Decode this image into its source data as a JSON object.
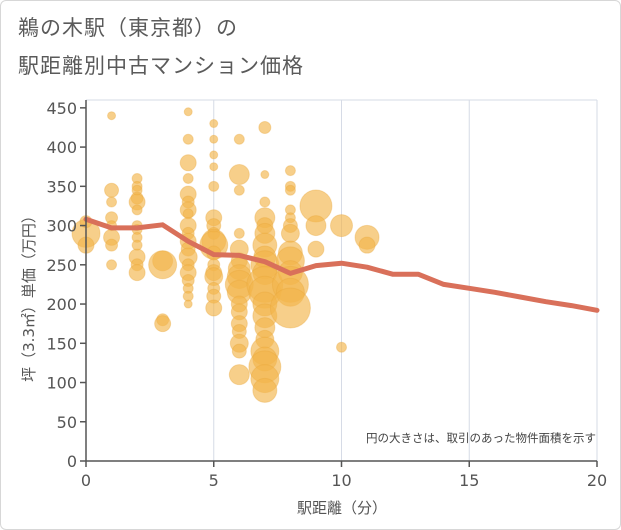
{
  "title_line1": "鵜の木駅（東京都）の",
  "title_line2": "駅距離別中古マンション価格",
  "chart_data": {
    "type": "scatter",
    "title": "鵜の木駅（東京都）の 駅距離別中古マンション価格",
    "xlabel": "駅距離（分）",
    "ylabel": "坪（3.3㎡）単価（万円）",
    "xlim": [
      0,
      20
    ],
    "ylim": [
      0,
      460
    ],
    "xticks": [
      0,
      5,
      10,
      15,
      20
    ],
    "yticks": [
      0,
      50,
      100,
      150,
      200,
      250,
      300,
      350,
      400,
      450
    ],
    "annotation": "円の大きさは、取引のあった物件面積を示す",
    "colors": {
      "bubble": "#f2b54b",
      "line": "#d9705a",
      "grid": "#d6dbe6"
    },
    "points": [
      {
        "x": 0,
        "y": 290,
        "s": 14
      },
      {
        "x": 0,
        "y": 275,
        "s": 8
      },
      {
        "x": 0,
        "y": 305,
        "s": 6
      },
      {
        "x": 1,
        "y": 440,
        "s": 4
      },
      {
        "x": 1,
        "y": 345,
        "s": 7
      },
      {
        "x": 1,
        "y": 330,
        "s": 5
      },
      {
        "x": 1,
        "y": 310,
        "s": 6
      },
      {
        "x": 1,
        "y": 300,
        "s": 5
      },
      {
        "x": 1,
        "y": 285,
        "s": 8
      },
      {
        "x": 1,
        "y": 275,
        "s": 6
      },
      {
        "x": 1,
        "y": 250,
        "s": 5
      },
      {
        "x": 2,
        "y": 360,
        "s": 5
      },
      {
        "x": 2,
        "y": 350,
        "s": 5
      },
      {
        "x": 2,
        "y": 345,
        "s": 5
      },
      {
        "x": 2,
        "y": 335,
        "s": 6
      },
      {
        "x": 2,
        "y": 330,
        "s": 8
      },
      {
        "x": 2,
        "y": 320,
        "s": 5
      },
      {
        "x": 2,
        "y": 300,
        "s": 5
      },
      {
        "x": 2,
        "y": 295,
        "s": 5
      },
      {
        "x": 2,
        "y": 285,
        "s": 5
      },
      {
        "x": 2,
        "y": 260,
        "s": 8
      },
      {
        "x": 2,
        "y": 250,
        "s": 6
      },
      {
        "x": 2,
        "y": 240,
        "s": 8
      },
      {
        "x": 2,
        "y": 275,
        "s": 5
      },
      {
        "x": 3,
        "y": 255,
        "s": 10
      },
      {
        "x": 3,
        "y": 250,
        "s": 14
      },
      {
        "x": 3,
        "y": 180,
        "s": 6
      },
      {
        "x": 3,
        "y": 175,
        "s": 8
      },
      {
        "x": 4,
        "y": 445,
        "s": 4
      },
      {
        "x": 4,
        "y": 410,
        "s": 5
      },
      {
        "x": 4,
        "y": 380,
        "s": 8
      },
      {
        "x": 4,
        "y": 360,
        "s": 5
      },
      {
        "x": 4,
        "y": 340,
        "s": 8
      },
      {
        "x": 4,
        "y": 330,
        "s": 6
      },
      {
        "x": 4,
        "y": 320,
        "s": 8
      },
      {
        "x": 4,
        "y": 315,
        "s": 5
      },
      {
        "x": 4,
        "y": 300,
        "s": 8
      },
      {
        "x": 4,
        "y": 290,
        "s": 6
      },
      {
        "x": 4,
        "y": 280,
        "s": 8
      },
      {
        "x": 4,
        "y": 270,
        "s": 7
      },
      {
        "x": 4,
        "y": 260,
        "s": 9
      },
      {
        "x": 4,
        "y": 250,
        "s": 6
      },
      {
        "x": 4,
        "y": 240,
        "s": 8
      },
      {
        "x": 4,
        "y": 230,
        "s": 6
      },
      {
        "x": 4,
        "y": 220,
        "s": 5
      },
      {
        "x": 4,
        "y": 210,
        "s": 5
      },
      {
        "x": 4,
        "y": 200,
        "s": 4
      },
      {
        "x": 5,
        "y": 430,
        "s": 4
      },
      {
        "x": 5,
        "y": 410,
        "s": 4
      },
      {
        "x": 5,
        "y": 390,
        "s": 4
      },
      {
        "x": 5,
        "y": 375,
        "s": 4
      },
      {
        "x": 5,
        "y": 350,
        "s": 5
      },
      {
        "x": 5,
        "y": 310,
        "s": 8
      },
      {
        "x": 5,
        "y": 300,
        "s": 7
      },
      {
        "x": 5,
        "y": 290,
        "s": 6
      },
      {
        "x": 5,
        "y": 280,
        "s": 12
      },
      {
        "x": 5,
        "y": 275,
        "s": 14
      },
      {
        "x": 5,
        "y": 265,
        "s": 7
      },
      {
        "x": 5,
        "y": 250,
        "s": 6
      },
      {
        "x": 5,
        "y": 240,
        "s": 8
      },
      {
        "x": 5,
        "y": 235,
        "s": 9
      },
      {
        "x": 5,
        "y": 220,
        "s": 6
      },
      {
        "x": 5,
        "y": 210,
        "s": 7
      },
      {
        "x": 5,
        "y": 195,
        "s": 8
      },
      {
        "x": 6,
        "y": 410,
        "s": 5
      },
      {
        "x": 6,
        "y": 365,
        "s": 10
      },
      {
        "x": 6,
        "y": 345,
        "s": 5
      },
      {
        "x": 6,
        "y": 290,
        "s": 5
      },
      {
        "x": 6,
        "y": 270,
        "s": 9
      },
      {
        "x": 6,
        "y": 255,
        "s": 8
      },
      {
        "x": 6,
        "y": 245,
        "s": 11
      },
      {
        "x": 6,
        "y": 235,
        "s": 12
      },
      {
        "x": 6,
        "y": 225,
        "s": 14
      },
      {
        "x": 6,
        "y": 215,
        "s": 12
      },
      {
        "x": 6,
        "y": 200,
        "s": 8
      },
      {
        "x": 6,
        "y": 190,
        "s": 8
      },
      {
        "x": 6,
        "y": 175,
        "s": 8
      },
      {
        "x": 6,
        "y": 165,
        "s": 7
      },
      {
        "x": 6,
        "y": 150,
        "s": 9
      },
      {
        "x": 6,
        "y": 140,
        "s": 7
      },
      {
        "x": 6,
        "y": 110,
        "s": 10
      },
      {
        "x": 7,
        "y": 425,
        "s": 6
      },
      {
        "x": 7,
        "y": 365,
        "s": 4
      },
      {
        "x": 7,
        "y": 330,
        "s": 5
      },
      {
        "x": 7,
        "y": 310,
        "s": 10
      },
      {
        "x": 7,
        "y": 300,
        "s": 8
      },
      {
        "x": 7,
        "y": 290,
        "s": 10
      },
      {
        "x": 7,
        "y": 275,
        "s": 12
      },
      {
        "x": 7,
        "y": 260,
        "s": 11
      },
      {
        "x": 7,
        "y": 250,
        "s": 14
      },
      {
        "x": 7,
        "y": 240,
        "s": 12
      },
      {
        "x": 7,
        "y": 225,
        "s": 18
      },
      {
        "x": 7,
        "y": 215,
        "s": 16
      },
      {
        "x": 7,
        "y": 200,
        "s": 12
      },
      {
        "x": 7,
        "y": 185,
        "s": 12
      },
      {
        "x": 7,
        "y": 170,
        "s": 10
      },
      {
        "x": 7,
        "y": 155,
        "s": 9
      },
      {
        "x": 7,
        "y": 140,
        "s": 14
      },
      {
        "x": 7,
        "y": 130,
        "s": 12
      },
      {
        "x": 7,
        "y": 120,
        "s": 16
      },
      {
        "x": 7,
        "y": 105,
        "s": 14
      },
      {
        "x": 7,
        "y": 90,
        "s": 12
      },
      {
        "x": 8,
        "y": 370,
        "s": 5
      },
      {
        "x": 8,
        "y": 350,
        "s": 5
      },
      {
        "x": 8,
        "y": 345,
        "s": 5
      },
      {
        "x": 8,
        "y": 320,
        "s": 5
      },
      {
        "x": 8,
        "y": 310,
        "s": 5
      },
      {
        "x": 8,
        "y": 300,
        "s": 7
      },
      {
        "x": 8,
        "y": 290,
        "s": 9
      },
      {
        "x": 8,
        "y": 265,
        "s": 12
      },
      {
        "x": 8,
        "y": 255,
        "s": 14
      },
      {
        "x": 8,
        "y": 240,
        "s": 12
      },
      {
        "x": 8,
        "y": 225,
        "s": 18
      },
      {
        "x": 8,
        "y": 215,
        "s": 14
      },
      {
        "x": 8,
        "y": 195,
        "s": 20
      },
      {
        "x": 9,
        "y": 325,
        "s": 16
      },
      {
        "x": 9,
        "y": 300,
        "s": 10
      },
      {
        "x": 9,
        "y": 270,
        "s": 8
      },
      {
        "x": 10,
        "y": 300,
        "s": 11
      },
      {
        "x": 10,
        "y": 145,
        "s": 5
      },
      {
        "x": 11,
        "y": 285,
        "s": 12
      },
      {
        "x": 11,
        "y": 275,
        "s": 8
      }
    ],
    "trend": {
      "x": [
        0,
        1,
        2,
        3,
        4,
        5,
        6,
        7,
        8,
        9,
        10,
        11,
        12,
        13,
        14,
        15,
        16,
        17,
        18,
        19,
        20
      ],
      "y": [
        308,
        297,
        297,
        301,
        280,
        263,
        262,
        254,
        239,
        249,
        252,
        247,
        238,
        238,
        225,
        220,
        215,
        209,
        203,
        198,
        192
      ]
    }
  }
}
